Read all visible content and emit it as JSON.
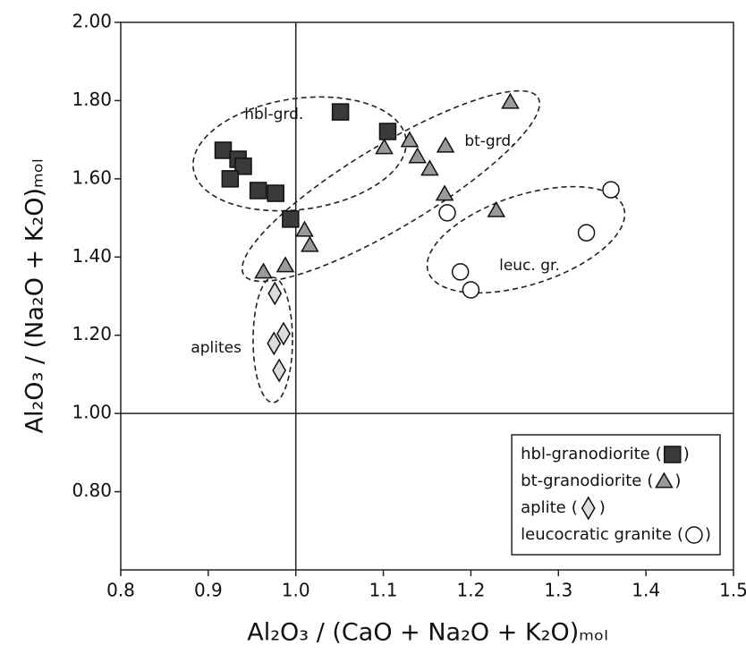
{
  "chart_data": {
    "type": "scatter",
    "xlabel": "Al₂O₃ / (CaO + Na₂O + K₂O)ₘₒₗ",
    "ylabel": "Al₂O₃ / (Na₂O + K₂O)ₘₒₗ",
    "xlim": [
      0.8,
      1.5
    ],
    "xticks": [
      0.8,
      0.9,
      {
        "value": 1,
        "label": "1.0"
      },
      1.1,
      1.2,
      1.3,
      1.4,
      1.5
    ],
    "ylim": [
      0.6,
      2.0
    ],
    "yticks": [
      {
        "value": 0.8,
        "label": "0.80"
      },
      {
        "value": 1,
        "label": "1.00"
      },
      {
        "value": 1.2,
        "label": "1.20"
      },
      {
        "value": 1.4,
        "label": "1.40"
      },
      {
        "value": 1.6,
        "label": "1.60"
      },
      {
        "value": 1.8,
        "label": "1.80"
      },
      {
        "value": 2,
        "label": "2.00"
      }
    ],
    "vlines": [
      1.0
    ],
    "hlines": [
      1.0
    ],
    "legend": "lower right",
    "legend_marker_brackets": [
      "(",
      ")"
    ],
    "series": [
      {
        "name": "hbl-granodiorite",
        "marker": "square",
        "color": "#3a3a3a",
        "x": [
          0.917,
          0.934,
          0.94,
          0.925,
          0.957,
          0.977,
          0.994,
          1.051,
          1.105
        ],
        "values": [
          1.673,
          1.65,
          1.632,
          1.6,
          1.57,
          1.563,
          1.497,
          1.771,
          1.721
        ]
      },
      {
        "name": "bt-granodiorite",
        "marker": "triangle",
        "color": "#9a9a9a",
        "x": [
          1.245,
          1.13,
          1.101,
          1.139,
          1.153,
          1.17,
          1.171,
          1.229,
          1.01,
          1.016,
          0.963,
          0.988
        ],
        "values": [
          1.796,
          1.698,
          1.68,
          1.657,
          1.625,
          1.561,
          1.684,
          1.519,
          1.469,
          1.43,
          1.362,
          1.378
        ]
      },
      {
        "name": "aplite",
        "marker": "diamond",
        "color": "#dcdcdc",
        "x": [
          0.976,
          0.975,
          0.986,
          0.981
        ],
        "values": [
          1.307,
          1.179,
          1.204,
          1.11
        ]
      },
      {
        "name": "leucocratic granite",
        "marker": "circle",
        "color": "#ffffff",
        "x": [
          1.173,
          1.36,
          1.332,
          1.188,
          1.2
        ],
        "values": [
          1.513,
          1.572,
          1.462,
          1.362,
          1.316
        ]
      }
    ],
    "annotations": [
      {
        "text": "hbl-grd.",
        "x": 0.975,
        "y": 1.764
      },
      {
        "text": "bt-grd.",
        "x": 1.222,
        "y": 1.696
      },
      {
        "text": "leuc. gr.",
        "x": 1.267,
        "y": 1.378
      },
      {
        "text": "aplites",
        "x": 0.909,
        "y": 1.167
      }
    ]
  }
}
